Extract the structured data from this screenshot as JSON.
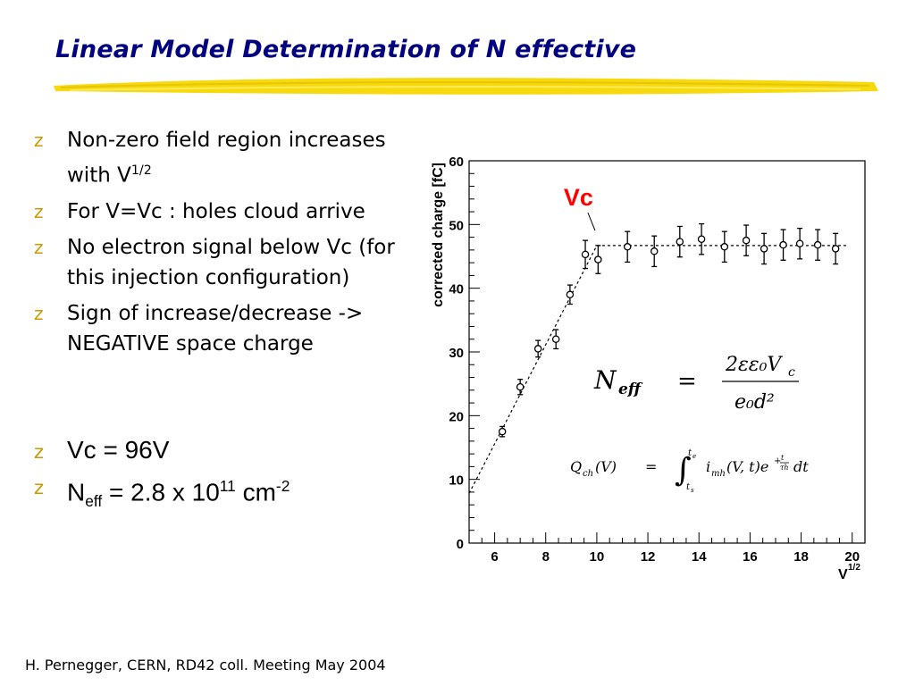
{
  "slide": {
    "title": "Linear Model Determination of N effective",
    "bullet_mark": "z",
    "bullets": [
      {
        "text": "Non-zero field region increases with V",
        "sup": "1/2"
      },
      {
        "text": "For V=Vc : holes cloud arrive"
      },
      {
        "text": "No electron signal below Vc (for this injection configuration)"
      },
      {
        "text": "Sign of increase/decrease -> NEGATIVE space charge"
      }
    ],
    "result_vc": "Vc = 96V",
    "result_neff": {
      "n": "N",
      "sub": "eff",
      "mid": " = 2.8 x 10",
      "sup1": "11",
      "unit": " cm",
      "sup2": "-2"
    },
    "footer": "H. Pernegger, CERN, RD42 coll. Meeting May 2004",
    "colors": {
      "title": "#000080",
      "bullet_mark": "#cc9900",
      "underline": "#f5d800",
      "vc_label": "#ff0000"
    }
  },
  "chart_data": {
    "type": "scatter",
    "xlabel": "V",
    "xlabel_sup": "1/2",
    "ylabel": "corrected charge [fC]",
    "xlim": [
      5,
      20.5
    ],
    "ylim": [
      0,
      60
    ],
    "xticks": [
      6,
      8,
      10,
      12,
      14,
      16,
      18,
      20
    ],
    "yticks": [
      0,
      10,
      20,
      30,
      40,
      50,
      60
    ],
    "points": [
      {
        "x": 6.3,
        "y": 17.5,
        "err": 0.8
      },
      {
        "x": 7.0,
        "y": 24.5,
        "err": 1.2
      },
      {
        "x": 7.7,
        "y": 30.5,
        "err": 1.3
      },
      {
        "x": 8.4,
        "y": 32.0,
        "err": 1.5
      },
      {
        "x": 8.95,
        "y": 39.0,
        "err": 1.5
      },
      {
        "x": 9.55,
        "y": 45.3,
        "err": 2.2
      },
      {
        "x": 10.05,
        "y": 44.5,
        "err": 2.2
      },
      {
        "x": 11.2,
        "y": 46.5,
        "err": 2.4
      },
      {
        "x": 12.25,
        "y": 45.8,
        "err": 2.4
      },
      {
        "x": 13.25,
        "y": 47.3,
        "err": 2.4
      },
      {
        "x": 14.1,
        "y": 47.7,
        "err": 2.4
      },
      {
        "x": 15.0,
        "y": 46.5,
        "err": 2.4
      },
      {
        "x": 15.85,
        "y": 47.5,
        "err": 2.4
      },
      {
        "x": 16.55,
        "y": 46.2,
        "err": 2.4
      },
      {
        "x": 17.3,
        "y": 46.8,
        "err": 2.4
      },
      {
        "x": 17.95,
        "y": 47.0,
        "err": 2.4
      },
      {
        "x": 18.65,
        "y": 46.8,
        "err": 2.4
      },
      {
        "x": 19.35,
        "y": 46.2,
        "err": 2.4
      }
    ],
    "fit_rise": {
      "x": [
        5.0,
        10.0
      ],
      "y": [
        7.8,
        46.7
      ]
    },
    "fit_plateau": {
      "x": [
        10.0,
        20.5
      ],
      "y": [
        46.7,
        46.7
      ]
    },
    "annotation_label": "Vc",
    "annotation_at": {
      "x": 10.0,
      "y": 48.5
    },
    "formula_neff": "N_eff = 2εε₀V_c / (e₀d²)",
    "formula_q": "Q_ch(V) = ∫_{t_s}^{t_e} i_mh(V,t) e^{+t/τ_h} dt",
    "grid": false,
    "legend": "none"
  }
}
